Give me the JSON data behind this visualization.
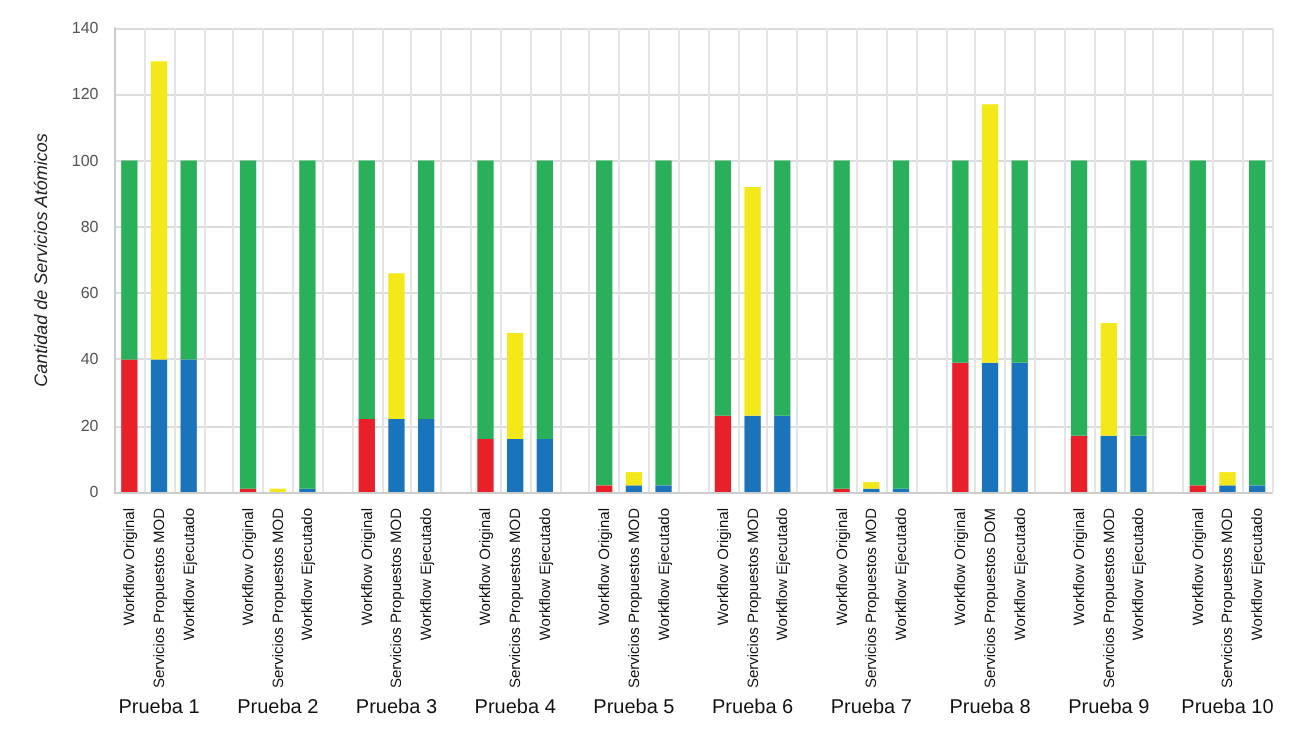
{
  "chart_data": {
    "type": "bar",
    "stacked": true,
    "ylabel": "Cantidad de Servicios Atómicos",
    "ylim": [
      0,
      140
    ],
    "yticks": [
      0,
      20,
      40,
      60,
      80,
      100,
      120,
      140
    ],
    "grid": true,
    "categories": [
      "Workflow Original",
      "Servicios Propuestos MOD",
      "Workflow Ejecutado",
      null,
      "Workflow Original",
      "Servicios Propuestos MOD",
      "Workflow Ejecutado",
      null,
      "Workflow Original",
      "Servicios Propuestos MOD",
      "Workflow Ejecutado",
      null,
      "Workflow Original",
      "Servicios Propuestos MOD",
      "Workflow Ejecutado",
      null,
      "Workflow Original",
      "Servicios Propuestos MOD",
      "Workflow Ejecutado",
      null,
      "Workflow Original",
      "Servicios Propuestos MOD",
      "Workflow Ejecutado",
      null,
      "Workflow Original",
      "Servicios Propuestos MOD",
      "Workflow Ejecutado",
      null,
      "Workflow Original",
      "Servicios Propuestos DOM",
      "Workflow Ejecutado",
      null,
      "Workflow Original",
      "Servicios Propuestos MOD",
      "Workflow Ejecutado",
      null,
      "Workflow Original",
      "Servicios Propuestos MOD",
      "Workflow Ejecutado"
    ],
    "series": [
      {
        "color": "#e8202a",
        "values": [
          40,
          null,
          null,
          null,
          1,
          null,
          null,
          null,
          22,
          null,
          null,
          null,
          16,
          null,
          null,
          null,
          2,
          null,
          null,
          null,
          23,
          null,
          null,
          null,
          1,
          null,
          null,
          null,
          39,
          null,
          null,
          null,
          17,
          null,
          null,
          null,
          2,
          null,
          null
        ]
      },
      {
        "color": "#1a74bc",
        "values": [
          null,
          40,
          40,
          null,
          null,
          null,
          1,
          null,
          null,
          22,
          22,
          null,
          null,
          16,
          16,
          null,
          null,
          2,
          2,
          null,
          null,
          23,
          23,
          null,
          null,
          1,
          1,
          null,
          null,
          39,
          39,
          null,
          null,
          17,
          17,
          null,
          null,
          2,
          2
        ]
      },
      {
        "color": "#f2e81a",
        "values": [
          null,
          90,
          null,
          null,
          null,
          1,
          null,
          null,
          null,
          44,
          null,
          null,
          null,
          32,
          null,
          null,
          null,
          4,
          null,
          null,
          null,
          69,
          null,
          null,
          null,
          2,
          null,
          null,
          null,
          78,
          null,
          null,
          null,
          34,
          null,
          null,
          null,
          4,
          null
        ]
      },
      {
        "color": "#2ab05a",
        "values": [
          60,
          null,
          60,
          null,
          99,
          null,
          99,
          null,
          78,
          null,
          78,
          null,
          84,
          null,
          84,
          null,
          98,
          null,
          98,
          null,
          77,
          null,
          77,
          null,
          99,
          null,
          99,
          null,
          61,
          null,
          61,
          null,
          83,
          null,
          83,
          null,
          98,
          null,
          98
        ]
      }
    ],
    "annotations": [
      "Prueba 1",
      "Prueba 2",
      "Prueba 3",
      "Prueba 4",
      "Prueba 5",
      "Prueba 6",
      "Prueba 7",
      "Prueba 8",
      "Prueba 9",
      "Prueba 10"
    ]
  }
}
